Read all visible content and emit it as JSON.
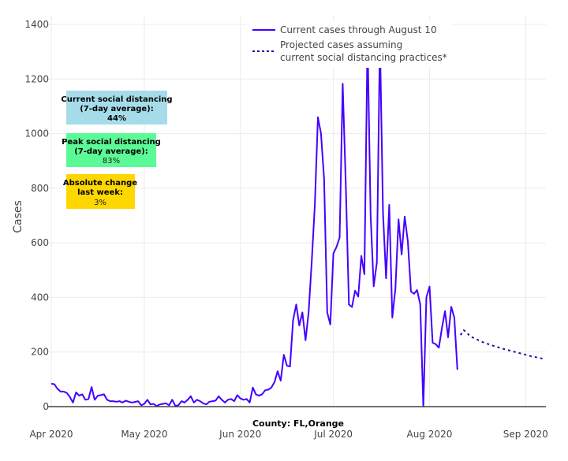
{
  "chart_data": {
    "type": "line",
    "title": "",
    "xlabel": "County: FL,Orange",
    "ylabel": "Cases",
    "ylim": [
      0,
      1400
    ],
    "yticks": [
      0,
      200,
      400,
      600,
      800,
      1000,
      1200,
      1400
    ],
    "xticks": [
      {
        "date": "2020-04-01",
        "label": "Apr 2020"
      },
      {
        "date": "2020-05-01",
        "label": "May 2020"
      },
      {
        "date": "2020-06-01",
        "label": "Jun 2020"
      },
      {
        "date": "2020-07-01",
        "label": "Jul 2020"
      },
      {
        "date": "2020-08-01",
        "label": "Aug 2020"
      },
      {
        "date": "2020-09-01",
        "label": "Sep 2020"
      }
    ],
    "xlim": [
      "2020-04-01",
      "2020-09-07"
    ],
    "grid": true,
    "legend_position": "top-right",
    "series": [
      {
        "name": "Current cases through August 10",
        "style": "solid",
        "color": "#4400ff",
        "start": "2020-04-01",
        "values": [
          84,
          82,
          65,
          55,
          55,
          50,
          35,
          15,
          52,
          40,
          45,
          25,
          28,
          72,
          25,
          40,
          42,
          45,
          25,
          20,
          20,
          18,
          20,
          15,
          22,
          18,
          15,
          17,
          20,
          5,
          10,
          25,
          8,
          10,
          2,
          8,
          10,
          12,
          5,
          25,
          3,
          5,
          20,
          15,
          25,
          38,
          15,
          25,
          20,
          12,
          8,
          18,
          20,
          22,
          38,
          25,
          15,
          25,
          28,
          20,
          42,
          30,
          25,
          28,
          15,
          70,
          45,
          40,
          45,
          60,
          62,
          70,
          90,
          130,
          95,
          190,
          150,
          147,
          316,
          374,
          297,
          345,
          243,
          345,
          528,
          739,
          1060,
          1000,
          835,
          345,
          301,
          561,
          585,
          619,
          1183,
          806,
          374,
          365,
          425,
          403,
          552,
          485,
          1350,
          700,
          441,
          528,
          1350,
          710,
          470,
          739,
          326,
          432,
          686,
          557,
          696,
          605,
          422,
          413,
          427,
          374,
          0,
          400,
          440,
          234,
          229,
          216,
          288,
          350,
          254,
          366,
          326,
          135
        ]
      },
      {
        "name": "Projected cases assuming current social distancing practices*",
        "name_lines": [
          "Projected cases assuming",
          "current social distancing practices*"
        ],
        "style": "dotted",
        "color": "#2a0a9e",
        "start": "2020-08-11",
        "values": [
          262,
          280,
          272,
          258,
          253,
          248,
          242,
          237,
          233,
          229,
          225,
          221,
          218,
          214,
          211,
          208,
          205,
          202,
          199,
          196,
          193,
          190,
          187,
          184,
          182,
          179,
          177,
          175
        ]
      }
    ],
    "annotations": [
      {
        "id": "current",
        "lines": [
          "Current social distancing",
          "(7-day average):"
        ],
        "value": "44%",
        "value_bold": true,
        "bg": "#a6dcea"
      },
      {
        "id": "peak",
        "lines": [
          "Peak social distancing",
          "(7-day average):"
        ],
        "value": "83%",
        "value_bold": false,
        "bg": "#5cfa96"
      },
      {
        "id": "change",
        "lines": [
          "Absolute change",
          "last week:"
        ],
        "value": "3%",
        "value_bold": false,
        "bg": "#ffd700"
      }
    ]
  }
}
